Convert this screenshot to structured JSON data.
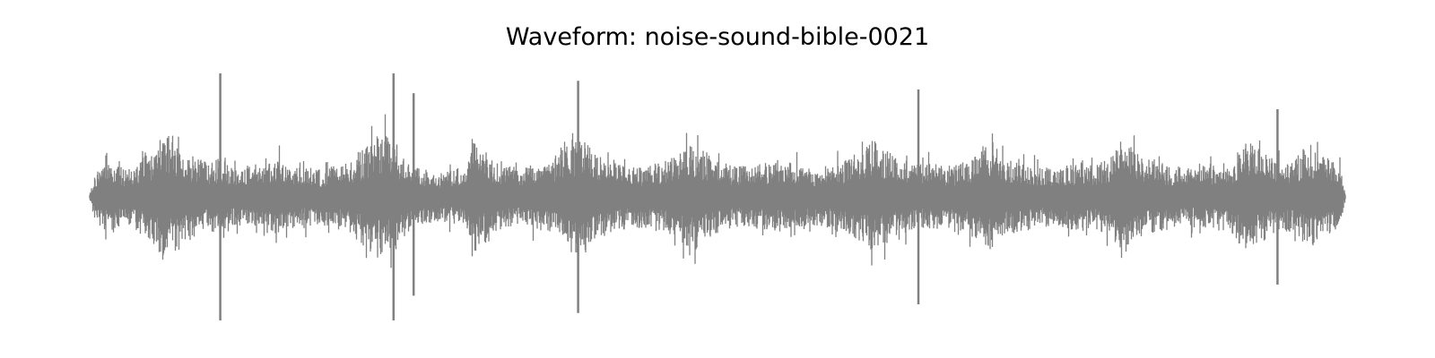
{
  "chart_data": {
    "type": "area",
    "title": "Waveform: noise-sound-bible-0021",
    "xlabel": "",
    "ylabel": "",
    "axes_visible": false,
    "grid": false,
    "legend": "none",
    "ylim": [
      -1.0,
      1.0
    ],
    "x_unit": "fraction of clip duration",
    "y_unit": "normalized amplitude",
    "series": [
      {
        "color": "#808080",
        "x": [
          0.0,
          0.004,
          0.01,
          0.02,
          0.03,
          0.04,
          0.05,
          0.06,
          0.07,
          0.08,
          0.09,
          0.095,
          0.1,
          0.103,
          0.105,
          0.107,
          0.11,
          0.115,
          0.12,
          0.13,
          0.135,
          0.14,
          0.15,
          0.16,
          0.17,
          0.18,
          0.19,
          0.2,
          0.21,
          0.22,
          0.23,
          0.234,
          0.237,
          0.24,
          0.245,
          0.25,
          0.26,
          0.27,
          0.28,
          0.29,
          0.3,
          0.305,
          0.31,
          0.315,
          0.32,
          0.33,
          0.34,
          0.345,
          0.35,
          0.36,
          0.37,
          0.38,
          0.39,
          0.395,
          0.4,
          0.41,
          0.42,
          0.43,
          0.44,
          0.45,
          0.46,
          0.47,
          0.48,
          0.486,
          0.49,
          0.495,
          0.5,
          0.51,
          0.52,
          0.53,
          0.54,
          0.55,
          0.56,
          0.57,
          0.58,
          0.59,
          0.6,
          0.61,
          0.62,
          0.625,
          0.63,
          0.64,
          0.65,
          0.66,
          0.67,
          0.68,
          0.69,
          0.7,
          0.71,
          0.715,
          0.72,
          0.73,
          0.74,
          0.75,
          0.76,
          0.77,
          0.78,
          0.79,
          0.8,
          0.81,
          0.82,
          0.825,
          0.83,
          0.84,
          0.85,
          0.86,
          0.87,
          0.88,
          0.89,
          0.9,
          0.91,
          0.92,
          0.93,
          0.94,
          0.95,
          0.96,
          0.97,
          0.98,
          0.99,
          0.996,
          1.0
        ],
        "envelope": [
          0.02,
          0.18,
          0.26,
          0.28,
          0.22,
          0.3,
          0.38,
          0.55,
          0.42,
          0.35,
          0.3,
          0.28,
          0.3,
          0.32,
          0.3,
          0.36,
          0.25,
          0.24,
          0.22,
          0.26,
          0.24,
          0.3,
          0.32,
          0.25,
          0.26,
          0.22,
          0.24,
          0.28,
          0.3,
          0.42,
          0.5,
          0.48,
          0.52,
          0.45,
          0.42,
          0.35,
          0.25,
          0.22,
          0.2,
          0.22,
          0.24,
          0.5,
          0.4,
          0.38,
          0.3,
          0.25,
          0.24,
          0.22,
          0.26,
          0.28,
          0.32,
          0.48,
          0.45,
          0.5,
          0.38,
          0.3,
          0.28,
          0.26,
          0.25,
          0.27,
          0.3,
          0.35,
          0.45,
          0.4,
          0.38,
          0.32,
          0.3,
          0.26,
          0.25,
          0.26,
          0.28,
          0.3,
          0.28,
          0.26,
          0.24,
          0.26,
          0.3,
          0.33,
          0.42,
          0.46,
          0.4,
          0.35,
          0.3,
          0.27,
          0.28,
          0.25,
          0.26,
          0.3,
          0.4,
          0.5,
          0.4,
          0.3,
          0.28,
          0.26,
          0.25,
          0.24,
          0.26,
          0.28,
          0.27,
          0.3,
          0.42,
          0.48,
          0.4,
          0.32,
          0.3,
          0.26,
          0.24,
          0.25,
          0.26,
          0.28,
          0.3,
          0.46,
          0.4,
          0.32,
          0.28,
          0.3,
          0.45,
          0.35,
          0.3,
          0.24,
          0.02
        ],
        "peaks": [
          {
            "x": 0.104,
            "max": 1.0,
            "min": -1.0
          },
          {
            "x": 0.242,
            "max": 1.0,
            "min": -1.0
          },
          {
            "x": 0.258,
            "max": 0.84,
            "min": -0.8
          },
          {
            "x": 0.389,
            "max": 0.94,
            "min": -0.94
          },
          {
            "x": 0.66,
            "max": 0.87,
            "min": -0.87
          },
          {
            "x": 0.946,
            "max": 0.71,
            "min": -0.71
          }
        ]
      }
    ]
  }
}
